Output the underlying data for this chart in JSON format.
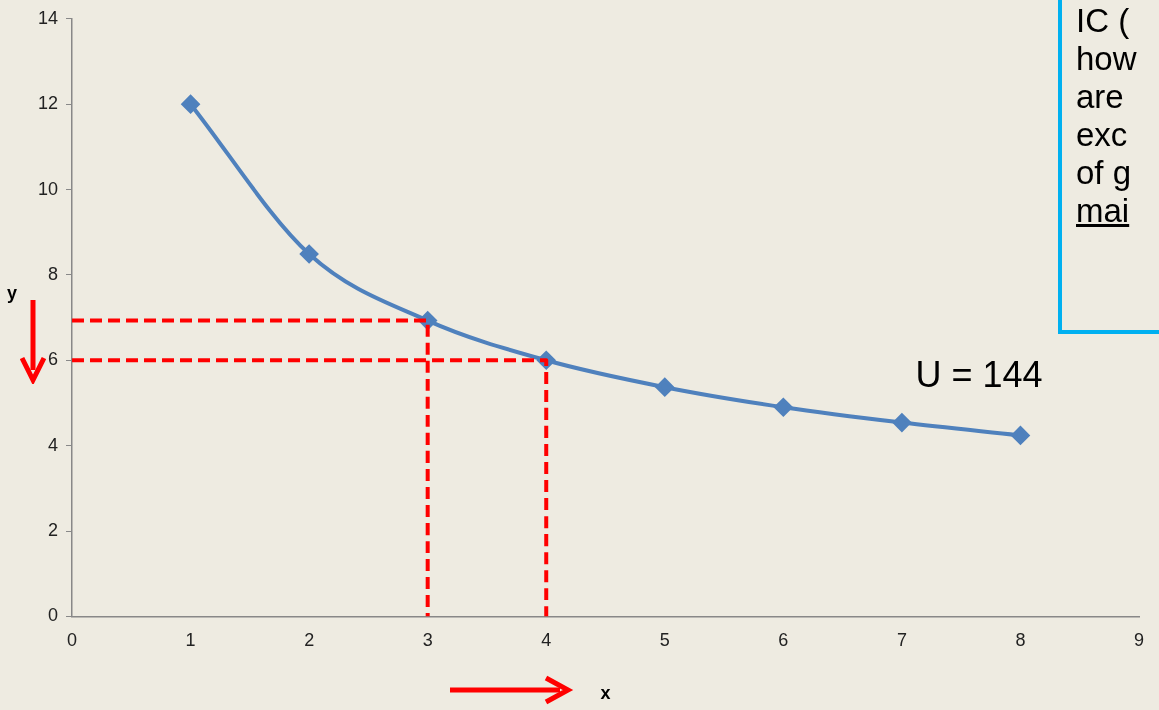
{
  "chart_data": {
    "type": "line",
    "xlabel": "x",
    "ylabel": "y",
    "xlim": [
      0,
      9
    ],
    "xticks": [
      0,
      1,
      2,
      3,
      4,
      5,
      6,
      7,
      8,
      9
    ],
    "ylim": [
      0,
      14
    ],
    "yticks": [
      0,
      2,
      4,
      6,
      8,
      10,
      12,
      14
    ],
    "grid": false,
    "legend": false,
    "series": [
      {
        "color": "#4f81bd",
        "marker": "diamond",
        "line_style": "solid",
        "x": [
          1,
          2,
          3,
          4,
          5,
          6,
          7,
          8
        ],
        "values": [
          12,
          8.49,
          6.93,
          6,
          5.37,
          4.9,
          4.54,
          4.24
        ]
      },
      {
        "color": "#ff0000",
        "marker": "none",
        "line_style": "dashed",
        "x": [
          0,
          3,
          3
        ],
        "values": [
          6.93,
          6.93,
          0
        ]
      },
      {
        "color": "#ff0000",
        "marker": "none",
        "line_style": "dashed",
        "x": [
          0,
          4,
          4
        ],
        "values": [
          6,
          6,
          0
        ]
      }
    ],
    "annotations": [
      "U = 144",
      "IC (",
      "how",
      "are",
      "exc",
      "of g",
      "mai"
    ]
  }
}
